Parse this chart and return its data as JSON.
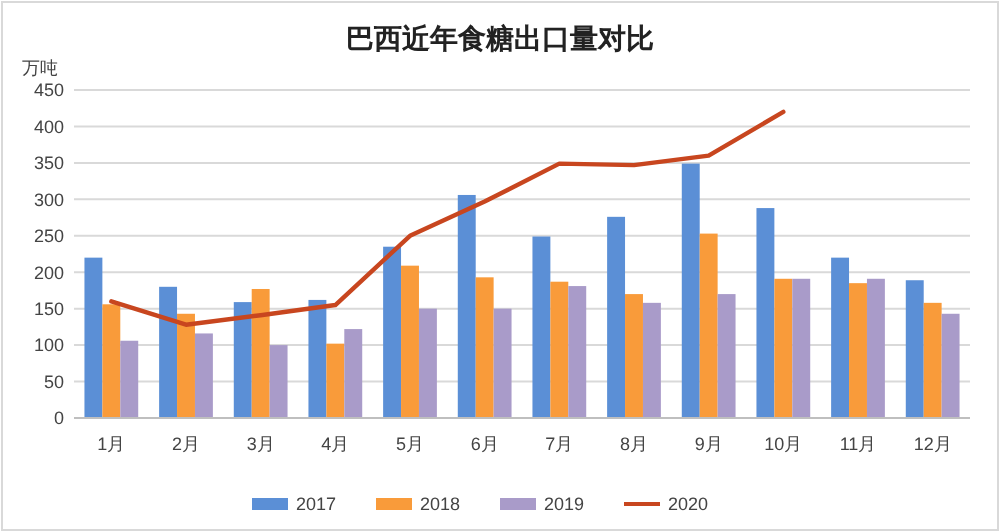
{
  "chart_data": {
    "type": "bar",
    "title": "巴西近年食糖出口量对比",
    "ylabel": "万吨",
    "categories": [
      "1月",
      "2月",
      "3月",
      "4月",
      "5月",
      "6月",
      "7月",
      "8月",
      "9月",
      "10月",
      "11月",
      "12月"
    ],
    "series": [
      {
        "name": "2017",
        "color": "#5b8fd6",
        "values": [
          220,
          180,
          159,
          162,
          235,
          306,
          249,
          276,
          349,
          288,
          220,
          189
        ]
      },
      {
        "name": "2018",
        "color": "#f99b3a",
        "values": [
          156,
          143,
          177,
          102,
          209,
          193,
          187,
          170,
          253,
          191,
          185,
          158
        ]
      },
      {
        "name": "2019",
        "color": "#a99bc9",
        "values": [
          106,
          116,
          100,
          122,
          150,
          150,
          181,
          158,
          170,
          191,
          191,
          143
        ]
      },
      {
        "name": "2020",
        "type": "line",
        "color": "#c8461f",
        "values": [
          160,
          128,
          141,
          155,
          250,
          297,
          349,
          347,
          360,
          420,
          null,
          null
        ]
      }
    ],
    "ylim": [
      0,
      450
    ],
    "yticks": [
      0,
      50,
      100,
      150,
      200,
      250,
      300,
      350,
      400,
      450
    ],
    "grid": "y",
    "legend": "bottom"
  }
}
